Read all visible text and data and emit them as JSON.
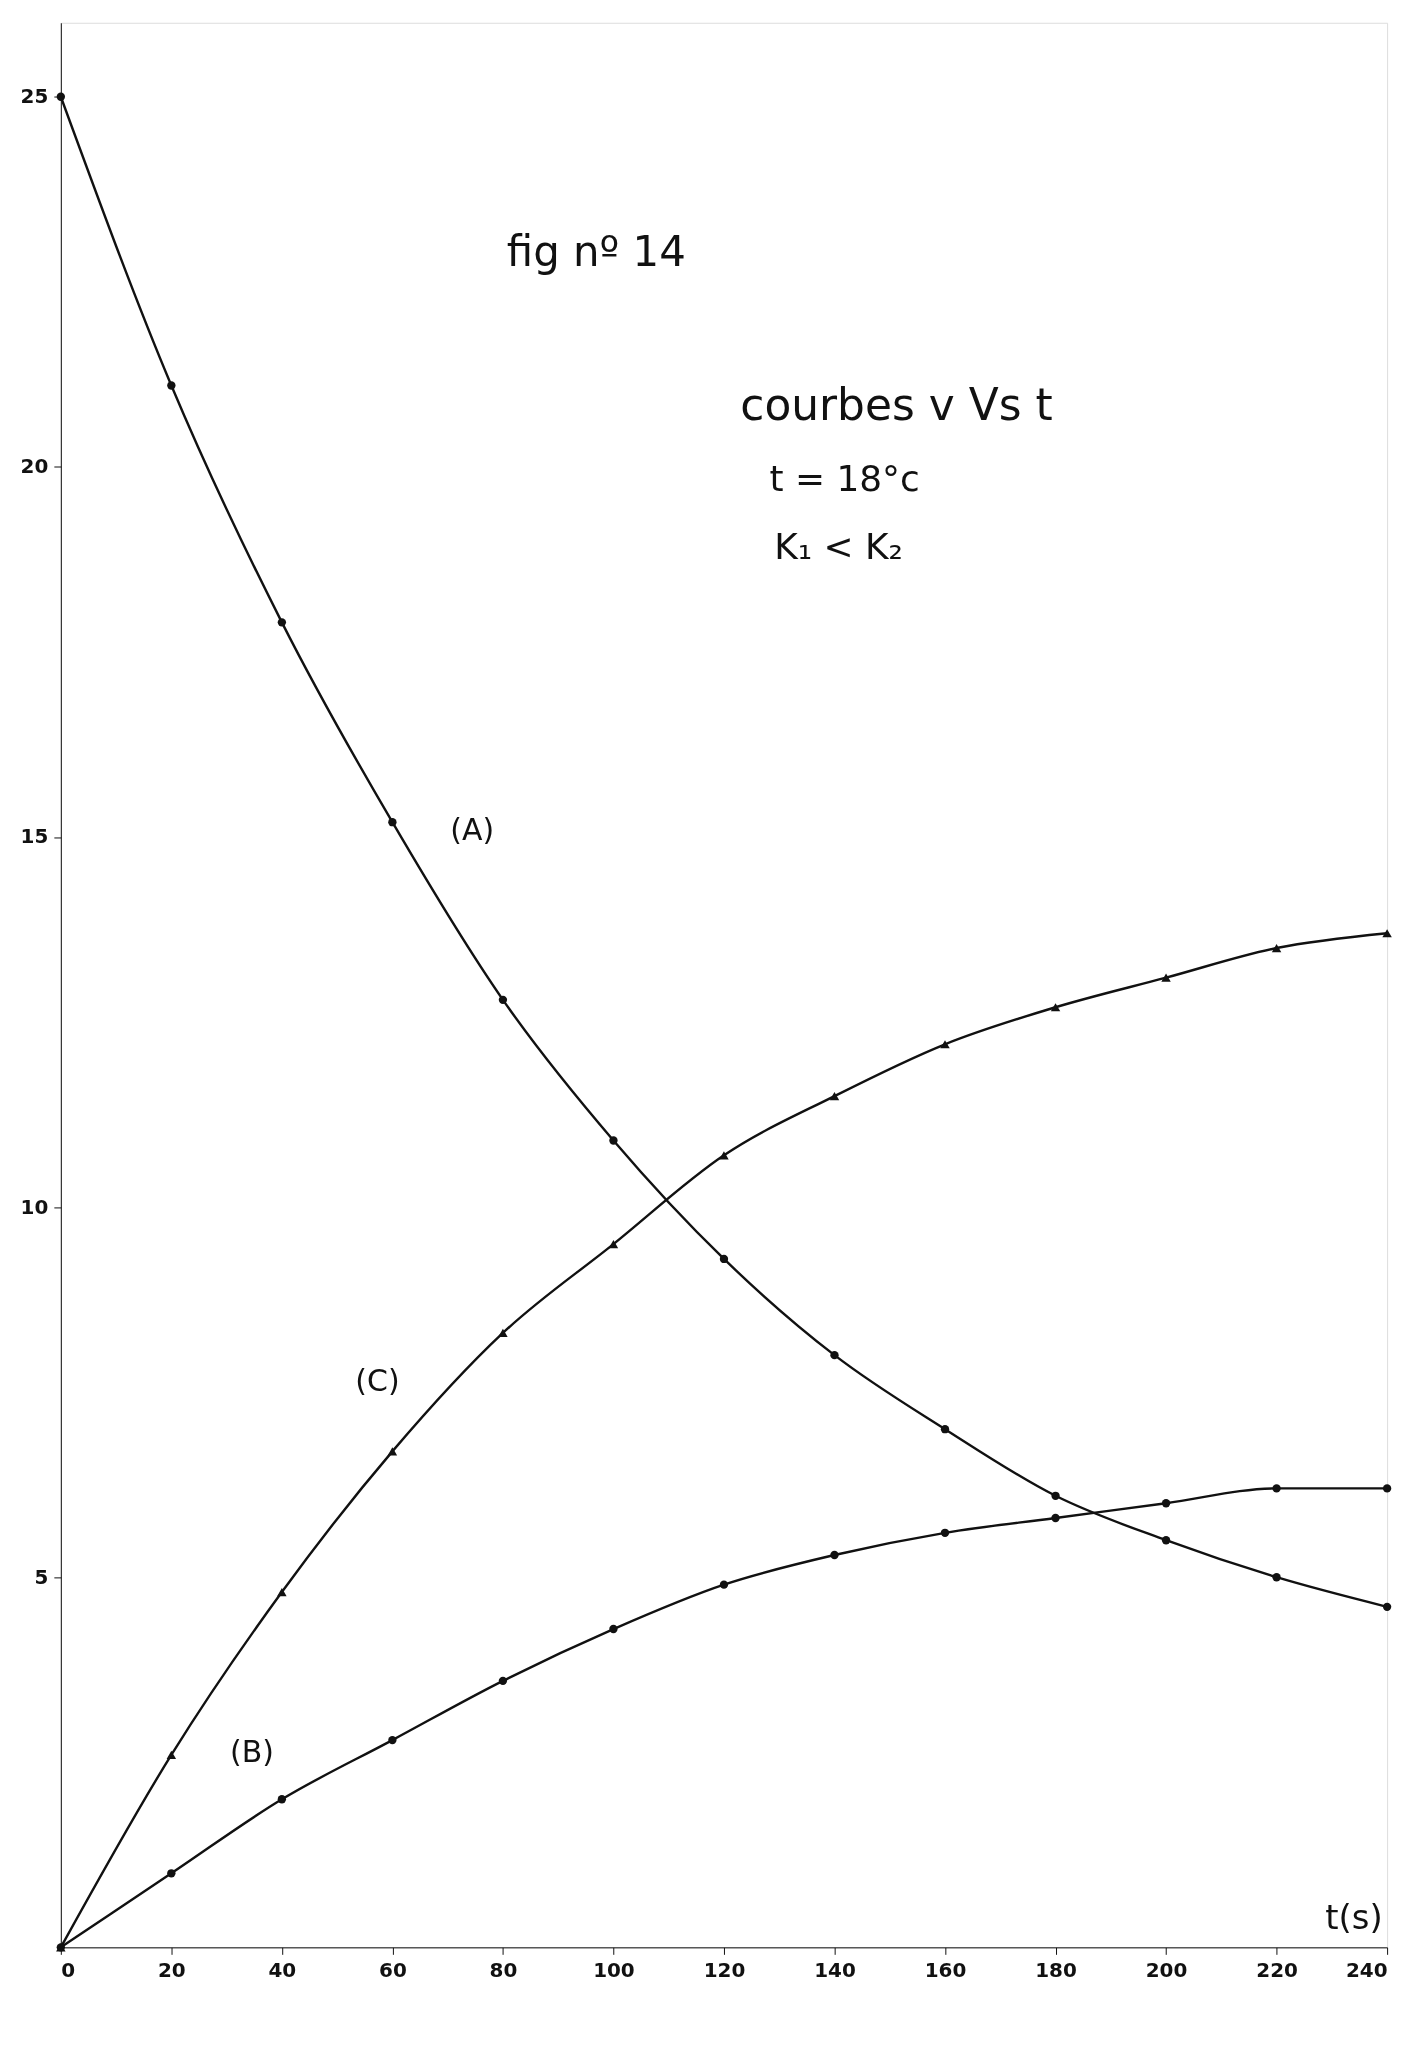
{
  "chart_data": {
    "type": "line",
    "title": "fig nº 14",
    "xlabel": "t(s)",
    "annotations": [
      "courbes  v Vs t",
      "t = 18°c",
      "K₁ < K₂"
    ],
    "x": [
      0,
      20,
      40,
      60,
      80,
      100,
      120,
      140,
      160,
      180,
      200,
      220,
      240
    ],
    "series": [
      {
        "name": "(A)",
        "color": "#111111",
        "values": [
          25,
          21.1,
          17.9,
          15.2,
          12.8,
          10.9,
          9.3,
          8.0,
          7.0,
          6.1,
          5.5,
          5.0,
          4.6
        ]
      },
      {
        "name": "(C)",
        "color": "#111111",
        "marker": "triangle",
        "values": [
          0,
          2.6,
          4.8,
          6.7,
          8.3,
          9.5,
          10.7,
          11.5,
          12.2,
          12.7,
          13.1,
          13.5,
          13.7
        ]
      },
      {
        "name": "(B)",
        "color": "#111111",
        "values": [
          0,
          1.0,
          2.0,
          2.8,
          3.6,
          4.3,
          4.9,
          5.3,
          5.6,
          5.8,
          6.0,
          6.2,
          6.2
        ]
      }
    ],
    "xlim": [
      0,
      240
    ],
    "ylim": [
      0,
      26
    ],
    "xticks": [
      0,
      20,
      40,
      60,
      80,
      100,
      120,
      140,
      160,
      180,
      200,
      220,
      240
    ],
    "yticks": [
      5,
      10,
      15,
      20,
      25
    ],
    "marker": "circle",
    "line_style": "solid"
  }
}
